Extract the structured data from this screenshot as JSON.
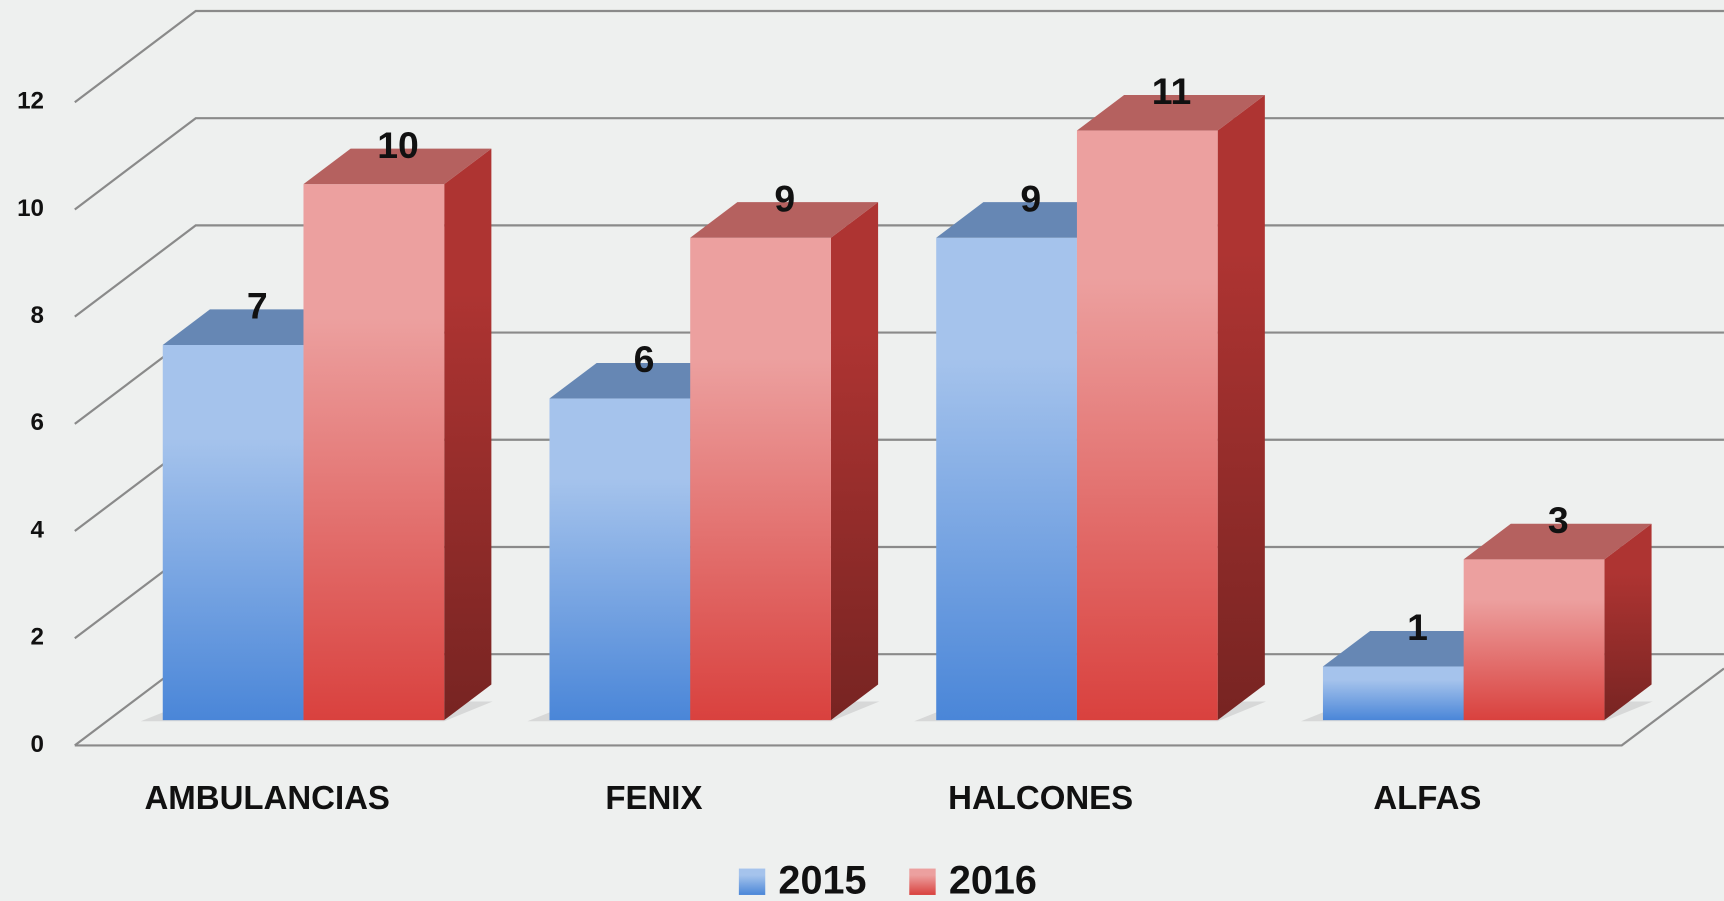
{
  "chart_data": {
    "type": "bar3d",
    "categories": [
      "AMBULANCIAS",
      "FENIX",
      "HALCONES",
      "ALFAS"
    ],
    "series": [
      {
        "name": "2015",
        "color": "#4a86d8",
        "values": [
          7,
          6,
          9,
          1
        ]
      },
      {
        "name": "2016",
        "color": "#d9413e",
        "values": [
          10,
          9,
          11,
          3
        ]
      }
    ],
    "ylim": [
      0,
      12
    ],
    "yticks": [
      0,
      2,
      4,
      6,
      8,
      10,
      12
    ],
    "grid": true,
    "legend": "bottom"
  }
}
